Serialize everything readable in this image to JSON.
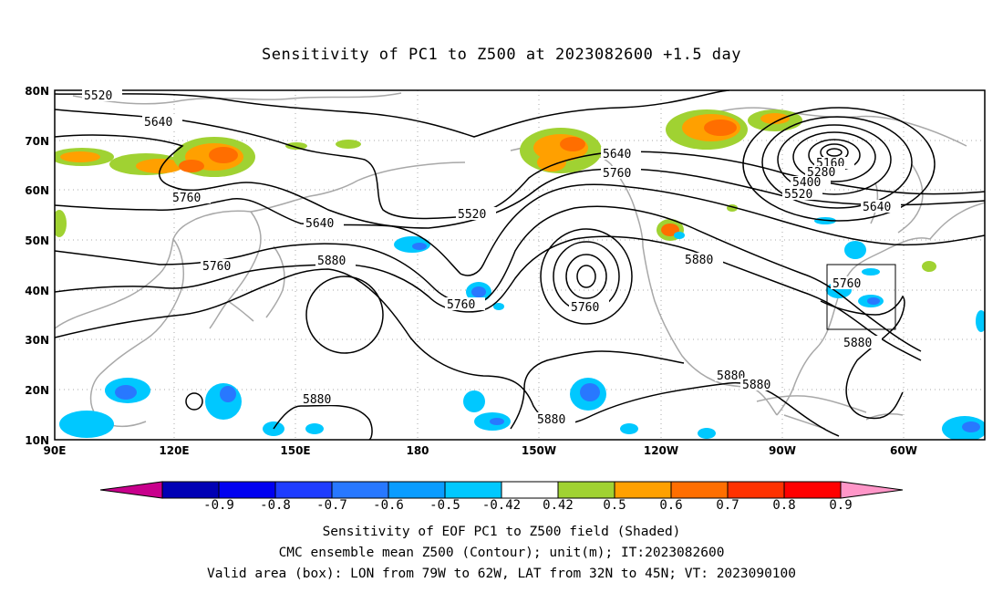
{
  "title": "Sensitivity of PC1 to Z500 at 2023082600 +1.5 day",
  "axes": {
    "lat_labels": [
      "80N",
      "70N",
      "60N",
      "50N",
      "40N",
      "30N",
      "20N",
      "10N"
    ],
    "lon_labels": [
      "90E",
      "120E",
      "150E",
      "180",
      "150W",
      "120W",
      "90W",
      "60W"
    ]
  },
  "contour_labels": [
    "5520",
    "5640",
    "5760",
    "5640",
    "5760",
    "5880",
    "5520",
    "5640",
    "5760",
    "5760",
    "5760",
    "5880",
    "5880",
    "5880",
    "5880",
    "5880",
    "5160",
    "5280",
    "5400",
    "5520",
    "5640",
    "5760",
    "5880"
  ],
  "valid_box": {
    "lon_from": "79W",
    "lon_to": "62W",
    "lat_from": "32N",
    "lat_to": "45N"
  },
  "colorbar": {
    "labels": [
      "-0.9",
      "-0.8",
      "-0.7",
      "-0.6",
      "-0.5",
      "-0.42",
      "0.42",
      "0.5",
      "0.6",
      "0.7",
      "0.8",
      "0.9"
    ],
    "colors": [
      "#0000b4",
      "#0000f0",
      "#1e3cff",
      "#2878ff",
      "#0a9cff",
      "#00c8ff",
      "#ffffff",
      "#a0d232",
      "#ffa000",
      "#ff6e00",
      "#ff3200",
      "#ff0000"
    ],
    "low_end_color": "#c8008c",
    "high_end_color": "#ff96c8"
  },
  "captions": [
    "Sensitivity of EOF PC1 to Z500 field (Shaded)",
    "CMC ensemble mean Z500 (Contour); unit(m); IT:2023082600",
    "Valid area (box): LON from 79W to 62W, LAT from 32N to 45N; VT: 2023090100"
  ]
}
